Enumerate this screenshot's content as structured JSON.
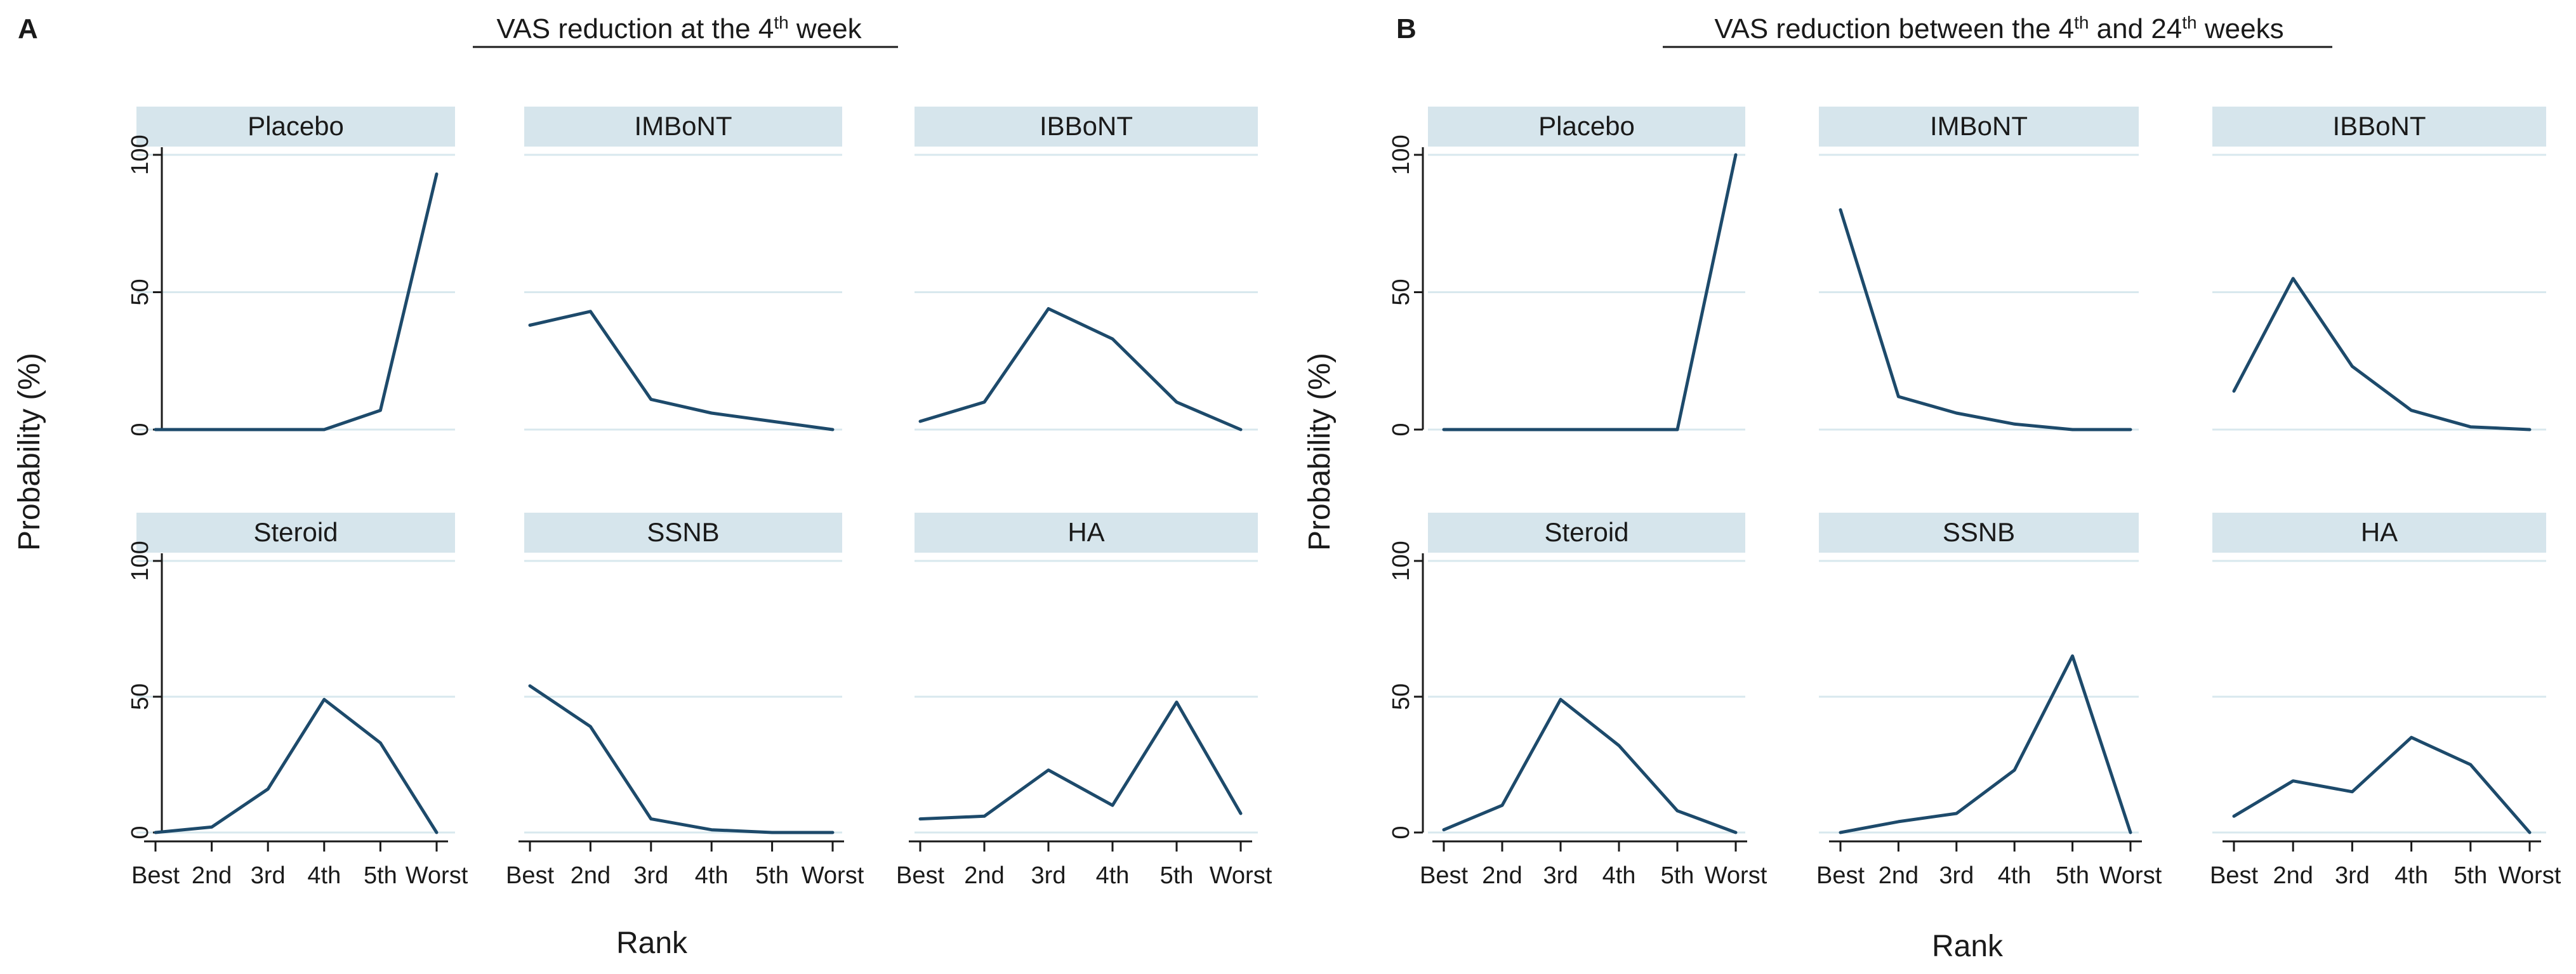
{
  "chart_data": [
    {
      "type": "line",
      "letter": "A",
      "title_main": "VAS reduction at the 4",
      "title_sup": "th",
      "title_end": " week",
      "xlabel": "Rank",
      "ylabel": "Probability (%)",
      "categories": [
        "Best",
        "2nd",
        "3rd",
        "4th",
        "5th",
        "Worst"
      ],
      "yticks": [
        0,
        50,
        100
      ],
      "ylim": [
        0,
        100
      ],
      "series": [
        {
          "name": "Placebo",
          "values": [
            0,
            0,
            0,
            0,
            7,
            93
          ]
        },
        {
          "name": "IMBoNT",
          "values": [
            38,
            43,
            11,
            6,
            3,
            0
          ]
        },
        {
          "name": "IBBoNT",
          "values": [
            3,
            10,
            44,
            33,
            10,
            0
          ]
        },
        {
          "name": "Steroid",
          "values": [
            0,
            2,
            16,
            49,
            33,
            0
          ]
        },
        {
          "name": "SSNB",
          "values": [
            54,
            39,
            5,
            1,
            0,
            0
          ]
        },
        {
          "name": "HA",
          "values": [
            5,
            6,
            23,
            10,
            48,
            7
          ]
        }
      ]
    },
    {
      "type": "line",
      "letter": "B",
      "title_main": "VAS reduction between the 4",
      "title_sup": "th",
      "title_mid": " and 24",
      "title_sup2": "th",
      "title_end": " weeks",
      "xlabel": "Rank",
      "ylabel": "Probability (%)",
      "categories": [
        "Best",
        "2nd",
        "3rd",
        "4th",
        "5th",
        "Worst"
      ],
      "yticks": [
        0,
        50,
        100
      ],
      "ylim": [
        0,
        100
      ],
      "series": [
        {
          "name": "Placebo",
          "values": [
            0,
            0,
            0,
            0,
            0,
            100
          ]
        },
        {
          "name": "IMBoNT",
          "values": [
            80,
            12,
            6,
            2,
            0,
            0
          ]
        },
        {
          "name": "IBBoNT",
          "values": [
            14,
            55,
            23,
            7,
            1,
            0
          ]
        },
        {
          "name": "Steroid",
          "values": [
            1,
            10,
            49,
            32,
            8,
            0
          ]
        },
        {
          "name": "SSNB",
          "values": [
            0,
            4,
            7,
            23,
            65,
            0
          ]
        },
        {
          "name": "HA",
          "values": [
            6,
            19,
            15,
            35,
            25,
            0
          ]
        }
      ]
    }
  ]
}
